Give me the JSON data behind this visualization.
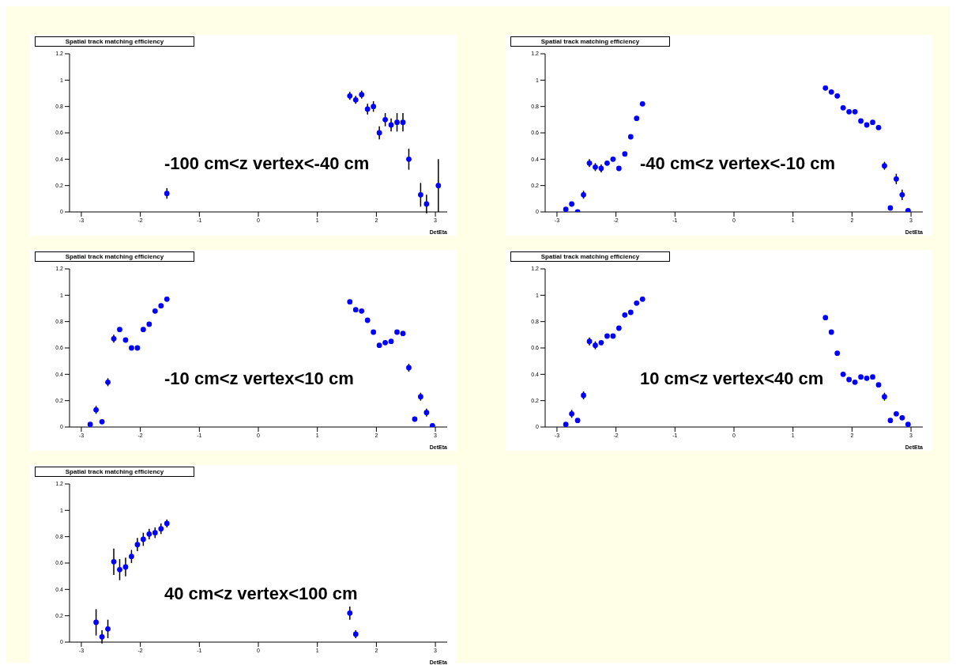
{
  "chart_data": [
    {
      "type": "scatter",
      "title": "Spatial track matching efficiency",
      "xlabel": "DetEta",
      "annotations": [
        "-100 cm<z vertex<-40 cm"
      ],
      "color": "#0000ff",
      "marker": "circle",
      "grid": false,
      "legend": false,
      "xlim": [
        -3.2,
        3.2
      ],
      "xticks": [
        -3,
        -2,
        -1,
        0,
        1,
        2,
        3
      ],
      "ylim": [
        0,
        1.2
      ],
      "yticks": [
        0,
        0.2,
        0.4,
        0.6,
        0.8,
        1,
        1.2
      ],
      "x": [
        -1.55,
        1.55,
        1.65,
        1.75,
        1.85,
        1.95,
        2.05,
        2.15,
        2.25,
        2.35,
        2.45,
        2.55,
        2.75,
        2.85,
        3.05
      ],
      "values": [
        0.14,
        0.88,
        0.85,
        0.89,
        0.78,
        0.8,
        0.6,
        0.7,
        0.66,
        0.68,
        0.68,
        0.4,
        0.13,
        0.06,
        0.2
      ],
      "errors": [
        0.04,
        0.03,
        0.03,
        0.03,
        0.04,
        0.04,
        0.05,
        0.05,
        0.05,
        0.07,
        0.07,
        0.08,
        0.09,
        0.07,
        0.2
      ]
    },
    {
      "type": "scatter",
      "title": "Spatial track matching efficiency",
      "xlabel": "DetEta",
      "annotations": [
        "-40 cm<z vertex<-10 cm"
      ],
      "color": "#0000ff",
      "marker": "circle",
      "grid": false,
      "legend": false,
      "xlim": [
        -3.2,
        3.2
      ],
      "xticks": [
        -3,
        -2,
        -1,
        0,
        1,
        2,
        3
      ],
      "ylim": [
        0,
        1.2
      ],
      "yticks": [
        0,
        0.2,
        0.4,
        0.6,
        0.8,
        1,
        1.2
      ],
      "x": [
        -2.85,
        -2.75,
        -2.65,
        -2.55,
        -2.45,
        -2.35,
        -2.25,
        -2.15,
        -2.05,
        -1.95,
        -1.85,
        -1.75,
        -1.65,
        -1.55,
        1.55,
        1.65,
        1.75,
        1.85,
        1.95,
        2.05,
        2.15,
        2.25,
        2.35,
        2.45,
        2.55,
        2.65,
        2.75,
        2.85,
        2.95
      ],
      "values": [
        0.02,
        0.06,
        0,
        0.13,
        0.37,
        0.34,
        0.33,
        0.37,
        0.4,
        0.33,
        0.44,
        0.57,
        0.71,
        0.82,
        0.94,
        0.91,
        0.88,
        0.79,
        0.76,
        0.76,
        0.69,
        0.66,
        0.68,
        0.64,
        0.35,
        0.03,
        0.25,
        0.13,
        0.01
      ],
      "errors": [
        null,
        null,
        null,
        0.03,
        0.03,
        0.03,
        0.03,
        null,
        null,
        null,
        null,
        null,
        null,
        null,
        null,
        null,
        null,
        null,
        null,
        null,
        null,
        null,
        null,
        null,
        0.03,
        null,
        0.04,
        0.04,
        null
      ]
    },
    {
      "type": "scatter",
      "title": "Spatial track matching efficiency",
      "xlabel": "DetEta",
      "annotations": [
        "-10 cm<z vertex<10 cm"
      ],
      "color": "#0000ff",
      "marker": "circle",
      "grid": false,
      "legend": false,
      "xlim": [
        -3.2,
        3.2
      ],
      "xticks": [
        -3,
        -2,
        -1,
        0,
        1,
        2,
        3
      ],
      "ylim": [
        0,
        1.2
      ],
      "yticks": [
        0,
        0.2,
        0.4,
        0.6,
        0.8,
        1,
        1.2
      ],
      "x": [
        -2.85,
        -2.75,
        -2.65,
        -2.55,
        -2.45,
        -2.35,
        -2.25,
        -2.15,
        -2.05,
        -1.95,
        -1.85,
        -1.75,
        -1.65,
        -1.55,
        1.55,
        1.65,
        1.75,
        1.85,
        1.95,
        2.05,
        2.15,
        2.25,
        2.35,
        2.45,
        2.55,
        2.65,
        2.75,
        2.85,
        2.95
      ],
      "values": [
        0.02,
        0.13,
        0.04,
        0.34,
        0.67,
        0.74,
        0.66,
        0.6,
        0.6,
        0.74,
        0.78,
        0.88,
        0.92,
        0.97,
        0.95,
        0.89,
        0.88,
        0.81,
        0.72,
        0.62,
        0.64,
        0.65,
        0.72,
        0.71,
        0.45,
        0.06,
        0.23,
        0.11,
        0.01
      ],
      "errors": [
        null,
        0.03,
        null,
        0.03,
        0.03,
        null,
        null,
        null,
        null,
        null,
        null,
        null,
        null,
        null,
        null,
        null,
        null,
        null,
        null,
        null,
        null,
        null,
        null,
        null,
        0.03,
        null,
        0.03,
        0.03,
        null
      ]
    },
    {
      "type": "scatter",
      "title": "Spatial track matching efficiency",
      "xlabel": "DetEta",
      "annotations": [
        "10 cm<z vertex<40 cm"
      ],
      "color": "#0000ff",
      "marker": "circle",
      "grid": false,
      "legend": false,
      "xlim": [
        -3.2,
        3.2
      ],
      "xticks": [
        -3,
        -2,
        -1,
        0,
        1,
        2,
        3
      ],
      "ylim": [
        0,
        1.2
      ],
      "yticks": [
        0,
        0.2,
        0.4,
        0.6,
        0.8,
        1,
        1.2
      ],
      "x": [
        -2.85,
        -2.75,
        -2.65,
        -2.55,
        -2.45,
        -2.35,
        -2.25,
        -2.15,
        -2.05,
        -1.95,
        -1.85,
        -1.75,
        -1.65,
        -1.55,
        1.55,
        1.65,
        1.75,
        1.85,
        1.95,
        2.05,
        2.15,
        2.25,
        2.35,
        2.45,
        2.55,
        2.65,
        2.75,
        2.85,
        2.95
      ],
      "values": [
        0.02,
        0.1,
        0.05,
        0.24,
        0.65,
        0.62,
        0.64,
        0.69,
        0.69,
        0.75,
        0.85,
        0.87,
        0.94,
        0.97,
        0.83,
        0.72,
        0.56,
        0.4,
        0.36,
        0.34,
        0.38,
        0.37,
        0.38,
        0.32,
        0.23,
        0.05,
        0.1,
        0.07,
        0.02
      ],
      "errors": [
        null,
        0.03,
        null,
        0.03,
        0.03,
        0.03,
        null,
        null,
        null,
        null,
        null,
        null,
        null,
        null,
        null,
        null,
        null,
        null,
        null,
        null,
        null,
        null,
        null,
        null,
        0.03,
        null,
        null,
        null,
        null
      ]
    },
    {
      "type": "scatter",
      "title": "Spatial track matching efficiency",
      "xlabel": "DetEta",
      "annotations": [
        "40 cm<z vertex<100 cm"
      ],
      "color": "#0000ff",
      "marker": "circle",
      "grid": false,
      "legend": false,
      "xlim": [
        -3.2,
        3.2
      ],
      "xticks": [
        -3,
        -2,
        -1,
        0,
        1,
        2,
        3
      ],
      "ylim": [
        0,
        1.2
      ],
      "yticks": [
        0,
        0.2,
        0.4,
        0.6,
        0.8,
        1,
        1.2
      ],
      "x": [
        -2.75,
        -2.65,
        -2.55,
        -2.45,
        -2.35,
        -2.25,
        -2.15,
        -2.05,
        -1.95,
        -1.85,
        -1.75,
        -1.65,
        -1.55,
        1.55,
        1.65
      ],
      "values": [
        0.15,
        0.04,
        0.1,
        0.61,
        0.55,
        0.57,
        0.65,
        0.74,
        0.78,
        0.82,
        0.83,
        0.86,
        0.9,
        0.22,
        0.06
      ],
      "errors": [
        0.1,
        0.05,
        0.07,
        0.1,
        0.08,
        0.07,
        0.05,
        0.05,
        0.05,
        0.04,
        0.04,
        0.04,
        0.03,
        0.05,
        0.03
      ]
    }
  ]
}
